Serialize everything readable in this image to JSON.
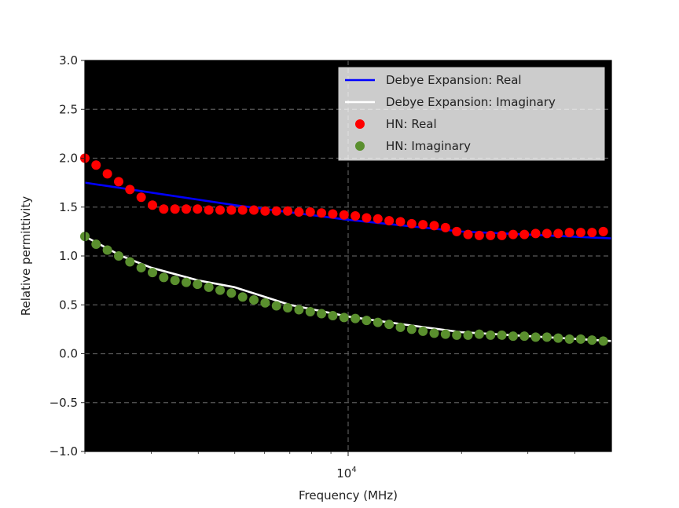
{
  "chart_data": {
    "type": "line",
    "title": "",
    "xlabel": "Frequency (MHz)",
    "ylabel": "Relative permittivity",
    "xscale": "log",
    "xlim": [
      2000,
      50000
    ],
    "ylim": [
      -1.0,
      3.0
    ],
    "x_tick_labels": [
      {
        "value": 10000,
        "base": "10",
        "exp": "4"
      }
    ],
    "y_ticks": [
      -1.0,
      -0.5,
      0.0,
      0.5,
      1.0,
      1.5,
      2.0,
      2.5,
      3.0
    ],
    "y_tick_labels": [
      "−1.0",
      "−0.5",
      "0.0",
      "0.5",
      "1.0",
      "1.5",
      "2.0",
      "2.5",
      "3.0"
    ],
    "grid": true,
    "background": "#000000",
    "legend_position": "top-right",
    "series": [
      {
        "name": "Debye Expansion: Real",
        "style": "line",
        "color": "#0000ff",
        "x": [
          2000,
          5000,
          10000,
          20000,
          50000
        ],
        "y": [
          1.75,
          1.52,
          1.37,
          1.25,
          1.18
        ]
      },
      {
        "name": "Debye Expansion: Imaginary",
        "style": "line",
        "color": "#ffffff",
        "x": [
          2000,
          2500,
          3000,
          4000,
          5000,
          7000,
          10000,
          14000,
          20000,
          30000,
          50000
        ],
        "y": [
          1.2,
          1.0,
          0.88,
          0.75,
          0.68,
          0.5,
          0.38,
          0.3,
          0.22,
          0.18,
          0.13
        ]
      },
      {
        "name": "HN: Real",
        "style": "marker",
        "color": "#ff0000",
        "x": [
          2000,
          2142,
          2295,
          2459,
          2634,
          2822,
          3023,
          3239,
          3470,
          3717,
          3982,
          4266,
          4571,
          4897,
          5246,
          5620,
          6021,
          6451,
          6911,
          7404,
          7932,
          8497,
          9103,
          9753,
          10448,
          11194,
          11992,
          12847,
          13764,
          14745,
          15797,
          16924,
          18131,
          19424,
          20810,
          22294,
          23884,
          25588,
          27413,
          29368,
          31463,
          33707,
          36111,
          38687,
          41447,
          44403,
          47571
        ],
        "y": [
          2.0,
          1.93,
          1.84,
          1.76,
          1.68,
          1.6,
          1.52,
          1.48,
          1.48,
          1.48,
          1.48,
          1.47,
          1.47,
          1.47,
          1.47,
          1.47,
          1.46,
          1.46,
          1.46,
          1.45,
          1.45,
          1.44,
          1.43,
          1.42,
          1.41,
          1.39,
          1.38,
          1.36,
          1.35,
          1.33,
          1.32,
          1.31,
          1.29,
          1.25,
          1.22,
          1.21,
          1.21,
          1.21,
          1.22,
          1.22,
          1.23,
          1.23,
          1.23,
          1.24,
          1.24,
          1.24,
          1.25
        ]
      },
      {
        "name": "HN: Imaginary",
        "style": "marker",
        "color": "#5a8f2e",
        "x": [
          2000,
          2142,
          2295,
          2459,
          2634,
          2822,
          3023,
          3239,
          3470,
          3717,
          3982,
          4266,
          4571,
          4897,
          5246,
          5620,
          6021,
          6451,
          6911,
          7404,
          7932,
          8497,
          9103,
          9753,
          10448,
          11194,
          11992,
          12847,
          13764,
          14745,
          15797,
          16924,
          18131,
          19424,
          20810,
          22294,
          23884,
          25588,
          27413,
          29368,
          31463,
          33707,
          36111,
          38687,
          41447,
          44403,
          47571
        ],
        "y": [
          1.2,
          1.12,
          1.06,
          1.0,
          0.94,
          0.88,
          0.83,
          0.78,
          0.75,
          0.73,
          0.71,
          0.68,
          0.65,
          0.62,
          0.58,
          0.55,
          0.52,
          0.49,
          0.47,
          0.45,
          0.43,
          0.41,
          0.39,
          0.37,
          0.36,
          0.34,
          0.32,
          0.3,
          0.27,
          0.25,
          0.23,
          0.21,
          0.2,
          0.19,
          0.19,
          0.2,
          0.19,
          0.19,
          0.18,
          0.18,
          0.17,
          0.17,
          0.16,
          0.15,
          0.15,
          0.14,
          0.13
        ]
      }
    ]
  }
}
